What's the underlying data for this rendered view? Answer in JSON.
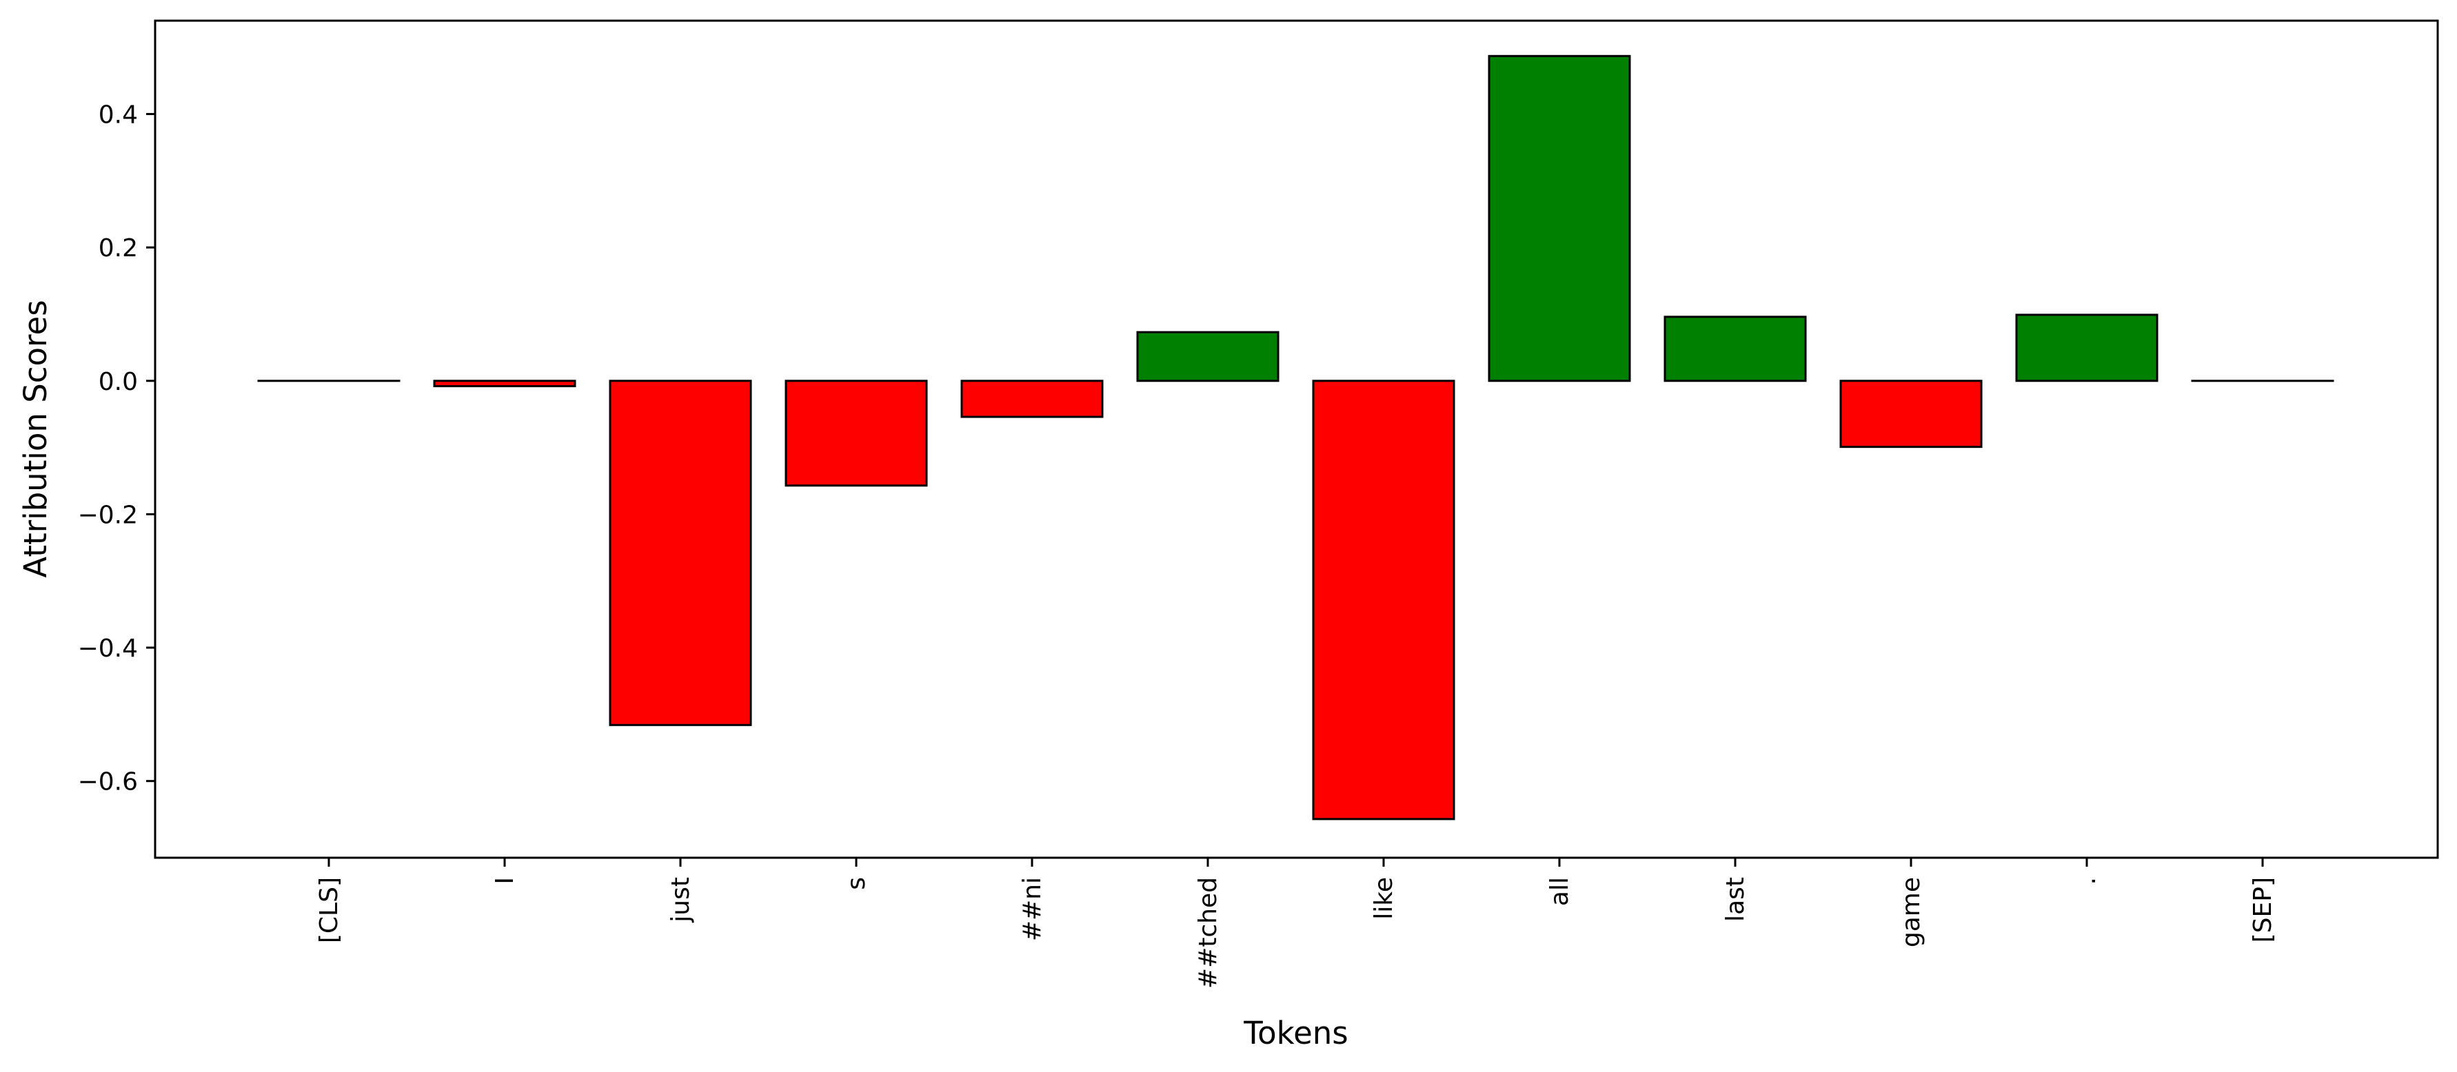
{
  "chart_data": {
    "type": "bar",
    "title": "",
    "xlabel": "Tokens",
    "ylabel": "Attribution Scores",
    "categories": [
      "[CLS]",
      "I",
      "just",
      "s",
      "##ni",
      "##tched",
      "like",
      "all",
      "last",
      "game",
      ".",
      "[SEP]"
    ],
    "values": [
      0.0,
      -0.008,
      -0.516,
      -0.157,
      -0.054,
      0.073,
      -0.657,
      0.487,
      0.096,
      -0.099,
      0.099,
      0.0
    ],
    "ylim": [
      -0.715,
      0.54
    ],
    "yticks": [
      0.4,
      0.2,
      0.0,
      -0.2,
      -0.4,
      -0.6
    ],
    "ytick_labels": [
      "0.4",
      "0.2",
      "0.0",
      "−0.2",
      "−0.4",
      "−0.6"
    ],
    "grid": false,
    "colors": {
      "positive": "#008000",
      "negative": "#ff0000",
      "edge": "#000000"
    }
  }
}
